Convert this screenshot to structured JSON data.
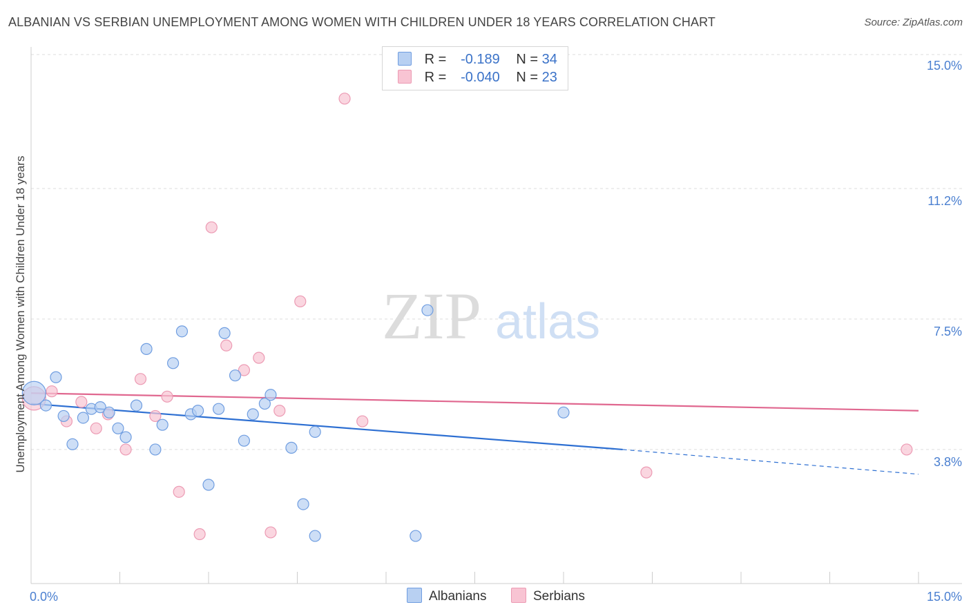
{
  "title": "ALBANIAN VS SERBIAN UNEMPLOYMENT AMONG WOMEN WITH CHILDREN UNDER 18 YEARS CORRELATION CHART",
  "source": "Source: ZipAtlas.com",
  "watermark": {
    "zip": "ZIP",
    "atlas": "atlas"
  },
  "legend": {
    "rows": [
      {
        "r_label": "R = ",
        "r_value": "-0.189",
        "n_label": "N = ",
        "n_value": "34"
      },
      {
        "r_label": "R = ",
        "r_value": "-0.040",
        "n_label": "N = ",
        "n_value": "23"
      }
    ]
  },
  "colors": {
    "albanians_fill": "#b8d0f2",
    "albanians_stroke": "#6f9de0",
    "albanians_line": "#2d6fd2",
    "serbians_fill": "#f8c4d3",
    "serbians_stroke": "#ec9ab3",
    "serbians_line": "#e0678f",
    "grid": "#dddddd",
    "tick_text": "#4a7fd0"
  },
  "chart_data": {
    "type": "scatter",
    "title": "ALBANIAN VS SERBIAN UNEMPLOYMENT AMONG WOMEN WITH CHILDREN UNDER 18 YEARS CORRELATION CHART",
    "xlabel": "",
    "ylabel": "Unemployment Among Women with Children Under 18 years",
    "xlim": [
      0,
      15
    ],
    "ylim": [
      0,
      15.5
    ],
    "x_tick_labels": [
      "0.0%",
      "15.0%"
    ],
    "y_ticks": [
      {
        "value": 15.0,
        "label": "15.0%"
      },
      {
        "value": 11.2,
        "label": "11.2%"
      },
      {
        "value": 7.5,
        "label": "7.5%"
      },
      {
        "value": 3.8,
        "label": "3.8%"
      }
    ],
    "series": [
      {
        "name": "Albanians",
        "r": -0.189,
        "n": 34,
        "trend": {
          "x0": 0.0,
          "y0": 5.1,
          "x1": 10.0,
          "y1": 3.8,
          "dash_to_x": 15.0,
          "dash_to_y": 3.1
        },
        "points": [
          {
            "x": 0.05,
            "y": 5.4,
            "big": true
          },
          {
            "x": 0.25,
            "y": 5.05
          },
          {
            "x": 0.42,
            "y": 5.85
          },
          {
            "x": 0.55,
            "y": 4.75
          },
          {
            "x": 0.7,
            "y": 3.95
          },
          {
            "x": 0.88,
            "y": 4.7
          },
          {
            "x": 1.02,
            "y": 4.95
          },
          {
            "x": 1.17,
            "y": 5.0
          },
          {
            "x": 1.32,
            "y": 4.85
          },
          {
            "x": 1.47,
            "y": 4.4
          },
          {
            "x": 1.6,
            "y": 4.15
          },
          {
            "x": 1.78,
            "y": 5.05
          },
          {
            "x": 1.95,
            "y": 6.65
          },
          {
            "x": 2.1,
            "y": 3.8
          },
          {
            "x": 2.22,
            "y": 4.5
          },
          {
            "x": 2.4,
            "y": 6.25
          },
          {
            "x": 2.55,
            "y": 7.15
          },
          {
            "x": 2.7,
            "y": 4.8
          },
          {
            "x": 2.82,
            "y": 4.9
          },
          {
            "x": 3.0,
            "y": 2.8
          },
          {
            "x": 3.17,
            "y": 4.95
          },
          {
            "x": 3.27,
            "y": 7.1
          },
          {
            "x": 3.45,
            "y": 5.9
          },
          {
            "x": 3.6,
            "y": 4.05
          },
          {
            "x": 3.75,
            "y": 4.8
          },
          {
            "x": 3.95,
            "y": 5.1
          },
          {
            "x": 4.05,
            "y": 5.35
          },
          {
            "x": 4.4,
            "y": 3.85
          },
          {
            "x": 4.6,
            "y": 2.25
          },
          {
            "x": 4.8,
            "y": 4.3
          },
          {
            "x": 4.8,
            "y": 1.35
          },
          {
            "x": 6.5,
            "y": 1.35
          },
          {
            "x": 6.7,
            "y": 7.75
          },
          {
            "x": 9.0,
            "y": 4.85
          }
        ]
      },
      {
        "name": "Serbians",
        "r": -0.04,
        "n": 23,
        "trend": {
          "x0": 0.0,
          "y0": 5.4,
          "x1": 15.0,
          "y1": 4.9
        },
        "points": [
          {
            "x": 0.05,
            "y": 5.25,
            "big": true
          },
          {
            "x": 0.35,
            "y": 5.45
          },
          {
            "x": 0.6,
            "y": 4.6
          },
          {
            "x": 0.85,
            "y": 5.15
          },
          {
            "x": 1.1,
            "y": 4.4
          },
          {
            "x": 1.3,
            "y": 4.8
          },
          {
            "x": 1.6,
            "y": 3.8
          },
          {
            "x": 1.85,
            "y": 5.8
          },
          {
            "x": 2.1,
            "y": 4.75
          },
          {
            "x": 2.3,
            "y": 5.3
          },
          {
            "x": 2.5,
            "y": 2.6
          },
          {
            "x": 2.85,
            "y": 1.4
          },
          {
            "x": 3.05,
            "y": 10.1
          },
          {
            "x": 3.3,
            "y": 6.75
          },
          {
            "x": 3.6,
            "y": 6.05
          },
          {
            "x": 3.85,
            "y": 6.4
          },
          {
            "x": 4.05,
            "y": 1.45
          },
          {
            "x": 4.2,
            "y": 4.9
          },
          {
            "x": 4.55,
            "y": 8.0
          },
          {
            "x": 5.3,
            "y": 13.75
          },
          {
            "x": 5.6,
            "y": 4.6
          },
          {
            "x": 10.4,
            "y": 3.15
          },
          {
            "x": 14.8,
            "y": 3.8
          }
        ]
      }
    ],
    "bottom_legend": [
      "Albanians",
      "Serbians"
    ]
  }
}
